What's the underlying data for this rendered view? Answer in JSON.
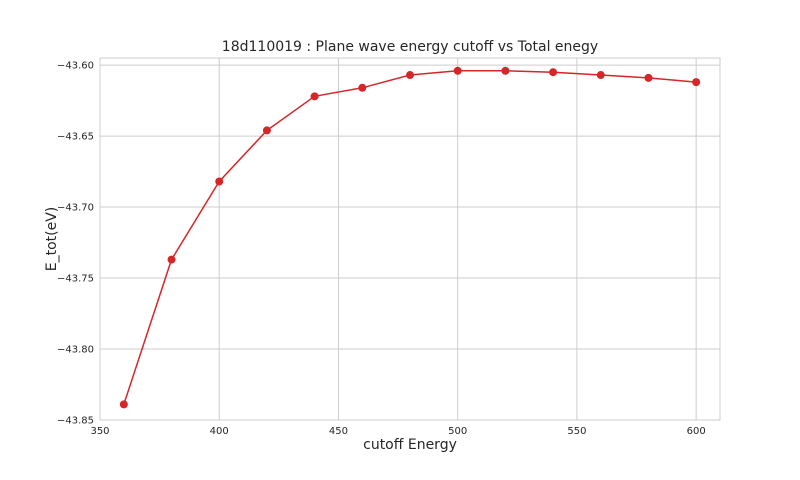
{
  "chart_data": {
    "type": "line",
    "title": "18d110019 : Plane wave energy cutoff vs Total enegy",
    "xlabel": "cutoff Energy",
    "ylabel": "E_tot(eV)",
    "xlim": [
      350,
      610
    ],
    "ylim": [
      -43.85,
      -43.595
    ],
    "xticks": [
      350,
      400,
      450,
      500,
      550,
      600
    ],
    "yticks": [
      -43.85,
      -43.8,
      -43.75,
      -43.7,
      -43.65,
      -43.6
    ],
    "xtick_labels": [
      "350",
      "400",
      "450",
      "500",
      "550",
      "600"
    ],
    "ytick_labels": [
      "−43.85",
      "−43.80",
      "−43.75",
      "−43.70",
      "−43.65",
      "−43.60"
    ],
    "grid": true,
    "series": [
      {
        "color": "#d62728",
        "marker": "circle",
        "x": [
          360,
          380,
          400,
          420,
          440,
          460,
          480,
          500,
          520,
          540,
          560,
          580,
          600
        ],
        "y": [
          -43.839,
          -43.737,
          -43.682,
          -43.646,
          -43.622,
          -43.616,
          -43.607,
          -43.604,
          -43.604,
          -43.605,
          -43.607,
          -43.609,
          -43.612
        ]
      }
    ]
  }
}
